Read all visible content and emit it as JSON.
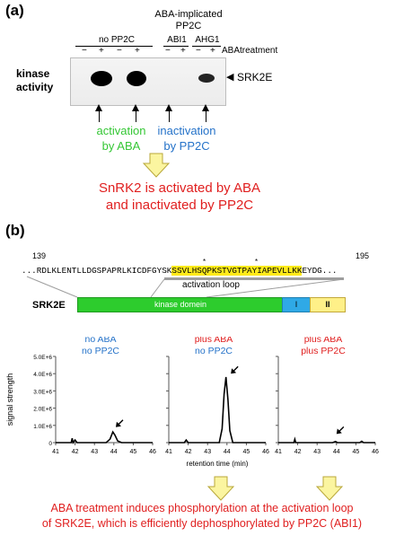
{
  "panel_a": {
    "label": "(a)",
    "header_line1": "ABA-implicated",
    "header_line2": "PP2C",
    "group_no_pp2c": "no PP2C",
    "group_abi1": "ABI1",
    "group_ahg1": "AHG1",
    "treatment_label": "ABAtreatment",
    "lane_signs": [
      "−",
      "+",
      "−",
      "+",
      "−",
      "+",
      "−",
      "+"
    ],
    "kinase_line1": "kinase",
    "kinase_line2": "activity",
    "band_label": "SRK2E",
    "activation_line1": "activation",
    "activation_line2": "by ABA",
    "inactivation_line1": "inactivation",
    "inactivation_line2": "by PP2C",
    "conclusion_line1": "SnRK2 is activated by ABA",
    "conclusion_line2": "and inactivated by PP2C",
    "colors": {
      "activation": "#35c735",
      "inactivation": "#2673c9",
      "conclusion": "#e01f1f",
      "arrow_fill": "#fbf5a0",
      "arrow_stroke": "#b8a73a"
    }
  },
  "panel_b": {
    "label": "(b)",
    "seq_start": "139",
    "seq_end": "195",
    "seq_prefix": "...RDLKLENTLLDGSPAPRLKICDFGYSK",
    "seq_highlight": "SSVLHSQPKSTVGTPAYIAPEVLLKK",
    "seq_suffix": "EYDG...",
    "star": "*",
    "activation_loop": "activation loop",
    "protein_label": "SRK2E",
    "domain_kinase": "kinase domein",
    "domain_I": "I",
    "domain_II": "II",
    "colors": {
      "kinase": "#2dcc2d",
      "domain_I": "#2fa9e6",
      "domain_II": "#fff088",
      "loop_highlight": "#ffeb1a"
    },
    "conclusion_line1": "ABA treatment induces phosphorylation at the activation loop",
    "conclusion_line2": "of SRK2E, which is efficiently dephosphorylated by PP2C (ABI1)"
  },
  "chart_data": {
    "type": "line",
    "ylabel": "signal strength",
    "xlabel": "retention time (min)",
    "ylim": [
      0,
      5000000
    ],
    "yticks": [
      "0",
      "1.0E+6",
      "2.0E+6",
      "3.0E+6",
      "4.0E+6",
      "5.0E+6"
    ],
    "panels": [
      {
        "title_line1": "no ABA",
        "title_line2": "no PP2C",
        "title_colors": [
          "#2673c9",
          "#2673c9"
        ],
        "xlim": [
          41,
          46
        ],
        "xticks": [
          "41",
          "42",
          "43",
          "44",
          "45",
          "46"
        ],
        "points": [
          [
            41.0,
            0
          ],
          [
            41.8,
            0
          ],
          [
            41.85,
            250000
          ],
          [
            41.9,
            0
          ],
          [
            42.0,
            150000
          ],
          [
            42.1,
            0
          ],
          [
            43.6,
            0
          ],
          [
            43.8,
            200000
          ],
          [
            43.95,
            620000
          ],
          [
            44.05,
            450000
          ],
          [
            44.2,
            100000
          ],
          [
            44.4,
            0
          ],
          [
            46.0,
            0
          ]
        ],
        "arrow_at": [
          44.1,
          900000
        ]
      },
      {
        "title_line1": "plus ABA",
        "title_line2": "no PP2C",
        "title_colors": [
          "#e01f1f",
          "#2673c9"
        ],
        "xlim": [
          41,
          46
        ],
        "xticks": [
          "41",
          "42",
          "43",
          "44",
          "45",
          "46"
        ],
        "points": [
          [
            41.0,
            0
          ],
          [
            41.8,
            0
          ],
          [
            41.9,
            150000
          ],
          [
            42.0,
            0
          ],
          [
            43.6,
            0
          ],
          [
            43.75,
            800000
          ],
          [
            43.85,
            2800000
          ],
          [
            43.95,
            3800000
          ],
          [
            44.05,
            2500000
          ],
          [
            44.15,
            700000
          ],
          [
            44.3,
            0
          ],
          [
            46.0,
            0
          ]
        ],
        "arrow_at": [
          44.2,
          4000000
        ]
      },
      {
        "title_line1": "plus ABA",
        "title_line2": "plus PP2C",
        "title_colors": [
          "#e01f1f",
          "#e01f1f"
        ],
        "xlim": [
          41,
          46
        ],
        "xticks": [
          "41",
          "42",
          "43",
          "44",
          "45",
          "46"
        ],
        "points": [
          [
            41.0,
            0
          ],
          [
            41.8,
            0
          ],
          [
            41.85,
            200000
          ],
          [
            41.9,
            0
          ],
          [
            43.8,
            0
          ],
          [
            43.95,
            60000
          ],
          [
            44.05,
            0
          ],
          [
            45.2,
            0
          ],
          [
            45.3,
            80000
          ],
          [
            45.4,
            0
          ],
          [
            46.0,
            0
          ]
        ],
        "arrow_at": [
          44.0,
          500000
        ]
      }
    ]
  }
}
